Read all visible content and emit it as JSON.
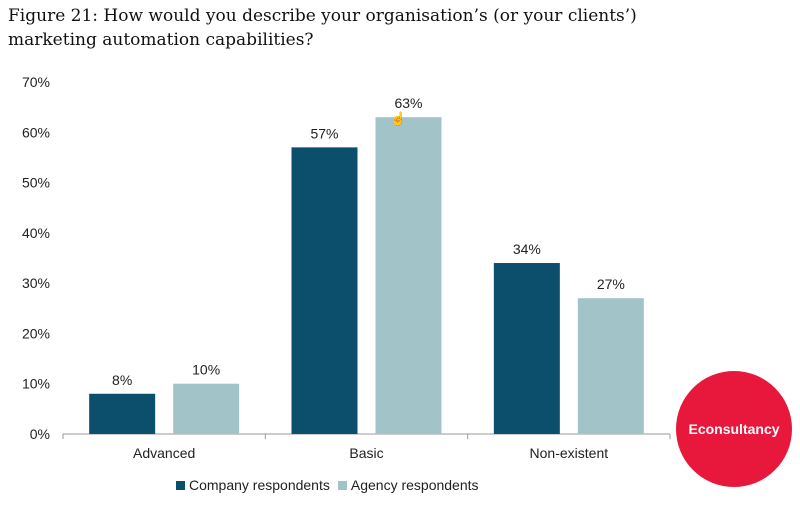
{
  "figure": {
    "title": "Figure 21: How would you describe your organisation’s (or your clients’) marketing automation capabilities?"
  },
  "logo": {
    "text": "Econsultancy",
    "color": "#e8183c"
  },
  "chart_data": {
    "type": "bar",
    "categories": [
      "Advanced",
      "Basic",
      "Non-existent"
    ],
    "series": [
      {
        "name": "Company respondents",
        "values": [
          8,
          57,
          34
        ],
        "labels": [
          "8%",
          "57%",
          "34%"
        ],
        "color": "#0b4f6c"
      },
      {
        "name": "Agency respondents",
        "values": [
          10,
          63,
          27
        ],
        "labels": [
          "10%",
          "63%",
          "27%"
        ],
        "color": "#a2c4c9"
      }
    ],
    "ylim": [
      0,
      70
    ],
    "yticks": [
      "0%",
      "10%",
      "20%",
      "30%",
      "40%",
      "50%",
      "60%",
      "70%"
    ],
    "ytick_values": [
      0,
      10,
      20,
      30,
      40,
      50,
      60,
      70
    ],
    "grid": false,
    "legend_position": "bottom"
  }
}
